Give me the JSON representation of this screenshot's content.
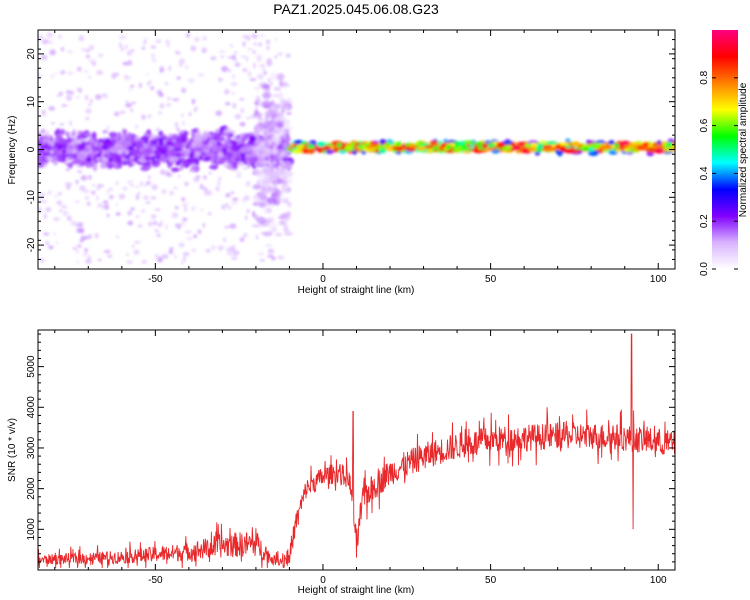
{
  "title": "PAZ1.2025.045.06.08.G23",
  "chart_data": [
    {
      "type": "heatmap",
      "xlabel": "Height of straight line (km)",
      "ylabel": "Frequency (Hz)",
      "xlim": [
        -85,
        105
      ],
      "ylim": [
        -25,
        25
      ],
      "xticks": [
        -50,
        0,
        50,
        100
      ],
      "yticks": [
        -20,
        -10,
        0,
        10,
        20
      ],
      "colorbar": {
        "label": "Normalized spectral amplitude",
        "range": [
          0,
          1
        ],
        "ticks": [
          0.0,
          0.2,
          0.4,
          0.6,
          0.8
        ],
        "tick_labels": [
          "0.0",
          "0.2",
          "0.4",
          "0.6",
          "0.8"
        ],
        "colors": [
          "#ffffff",
          "#d9b3ff",
          "#8000ff",
          "#0000ff",
          "#00ffff",
          "#00ff00",
          "#ffff00",
          "#ff8000",
          "#ff0000",
          "#ff0080"
        ]
      },
      "bands": [
        {
          "x_range": [
            -85,
            -10
          ],
          "freq_center": 0,
          "freq_halfwidth": 5,
          "amplitude": 0.2
        },
        {
          "x_range": [
            -20,
            -10
          ],
          "freq_center": 0,
          "freq_halfwidth": 25,
          "amplitude": 0.1
        },
        {
          "x_range": [
            -10,
            105
          ],
          "freq_center": 0.5,
          "freq_halfwidth": 1.5,
          "amplitude": 0.85
        }
      ]
    },
    {
      "type": "line",
      "xlabel": "Height of straight line (km)",
      "ylabel": "SNR (10 * v/v)",
      "xlim": [
        -85,
        105
      ],
      "ylim": [
        0,
        5900
      ],
      "xticks": [
        -50,
        0,
        50,
        100
      ],
      "yticks": [
        1000,
        2000,
        3000,
        4000,
        5000
      ],
      "series_color": "#e8282a",
      "trend": {
        "x": [
          -85,
          -60,
          -40,
          -30,
          -20,
          -15,
          -12,
          -10,
          -8,
          -5,
          0,
          5,
          8,
          10,
          12,
          20,
          30,
          40,
          50,
          60,
          70,
          80,
          90,
          100,
          105
        ],
        "y": [
          250,
          320,
          450,
          600,
          650,
          250,
          220,
          350,
          1200,
          2000,
          2300,
          2400,
          2200,
          700,
          1800,
          2400,
          2800,
          3050,
          3200,
          3250,
          3300,
          3300,
          3250,
          3150,
          3100
        ]
      },
      "peaks": [
        {
          "x": 9,
          "y": 3900
        },
        {
          "x": 92,
          "y": 5800
        },
        {
          "x": 92.5,
          "y": 1000
        },
        {
          "x": 10,
          "y": 300
        }
      ]
    }
  ]
}
